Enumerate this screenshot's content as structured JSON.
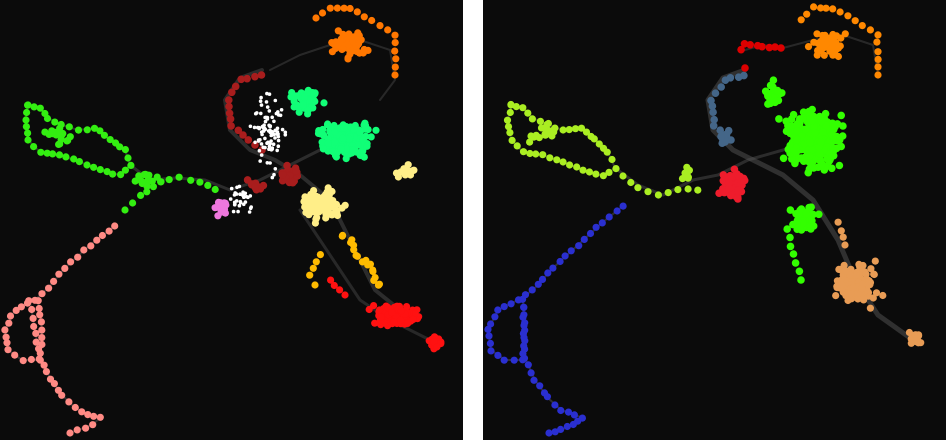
{
  "figure": {
    "panels": [
      {
        "id": "left",
        "clusters": [
          {
            "color": "#ff8a84"
          },
          {
            "color": "#33ee11"
          },
          {
            "color": "#ee77dd"
          },
          {
            "color": "#a81d1d"
          },
          {
            "color": "#ffffff"
          },
          {
            "color": "#11ff77"
          },
          {
            "color": "#ff7700"
          },
          {
            "color": "#ffee88"
          },
          {
            "color": "#ffbb00"
          },
          {
            "color": "#ff1111"
          }
        ]
      },
      {
        "id": "right",
        "clusters": [
          {
            "color": "#2a2fd0"
          },
          {
            "color": "#aaee22"
          },
          {
            "color": "#33ff00"
          },
          {
            "color": "#446688"
          },
          {
            "color": "#ee1c2c"
          },
          {
            "color": "#ff8800"
          },
          {
            "color": "#e89c55"
          },
          {
            "color": "#dd0000"
          }
        ]
      }
    ],
    "edge_color": "#555555",
    "background": "#0b0b0b",
    "separator": "#ffffff"
  }
}
